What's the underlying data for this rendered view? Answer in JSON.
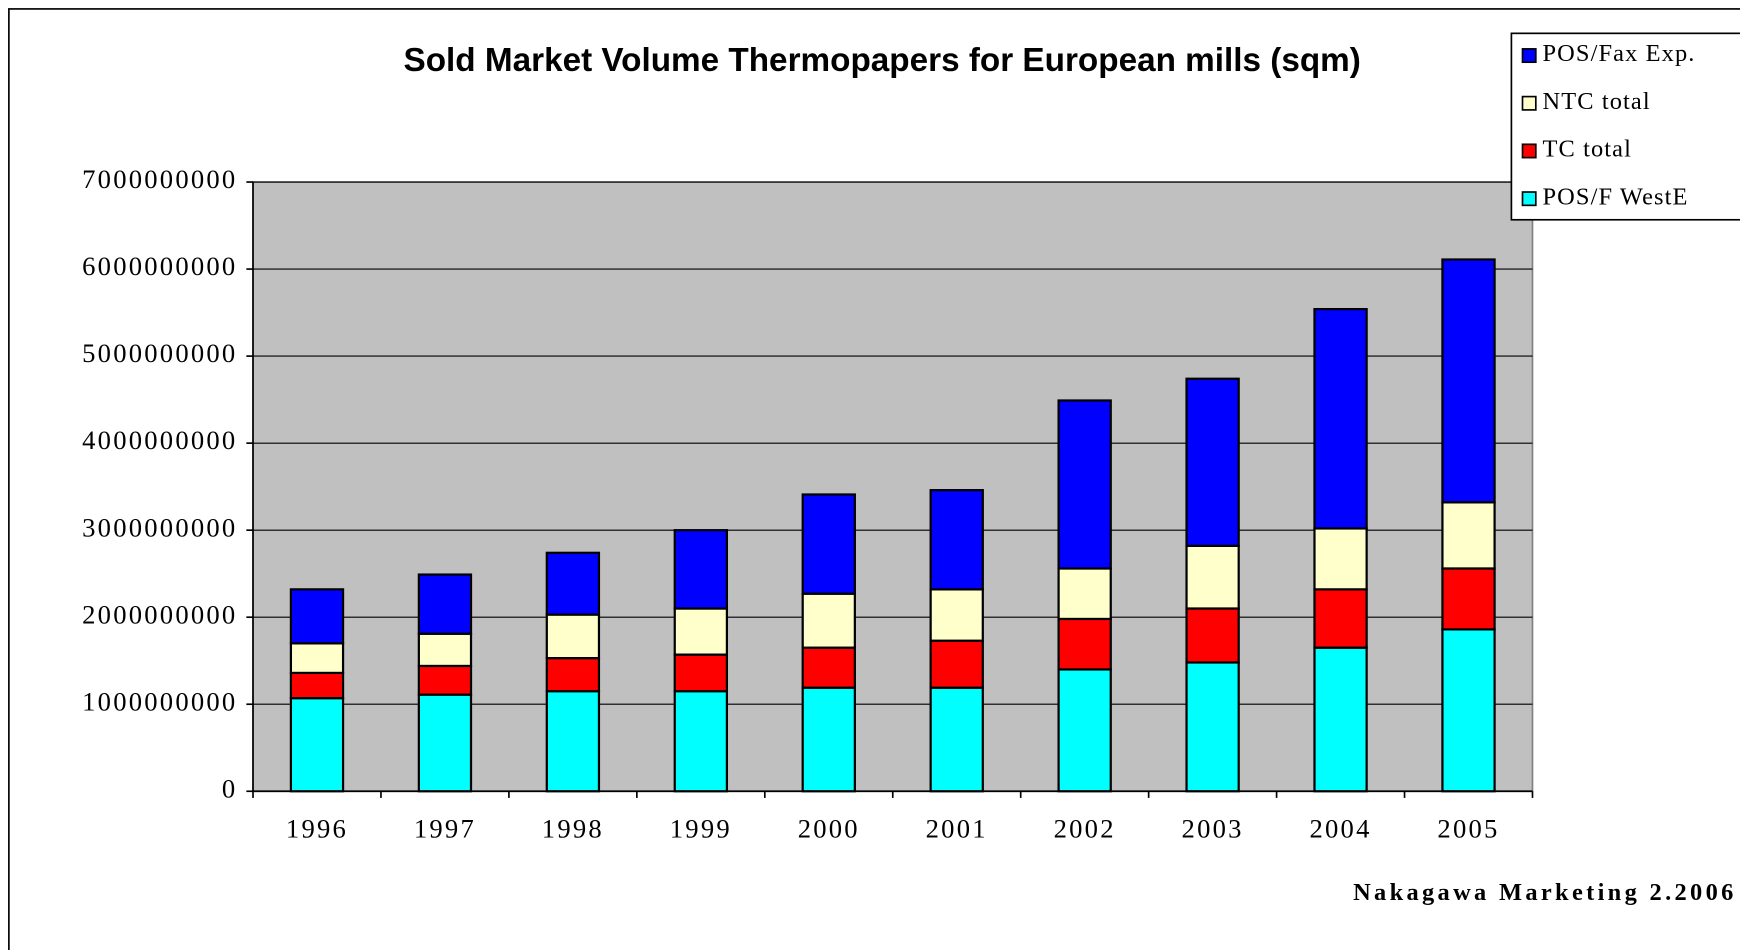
{
  "chart_data": {
    "type": "stacked_bar",
    "title": "Sold Market Volume Thermopapers for European mills (sqm)",
    "source": "Nakagawa Marketing 2.2006",
    "categories": [
      "1996",
      "1997",
      "1998",
      "1999",
      "2000",
      "2001",
      "2002",
      "2003",
      "2004",
      "2005"
    ],
    "series": [
      {
        "name": " POS/F WestE",
        "color": "#00ffff",
        "values": [
          1070000000,
          1110000000,
          1150000000,
          1150000000,
          1190000000,
          1190000000,
          1400000000,
          1480000000,
          1650000000,
          1860000000
        ]
      },
      {
        "name": "TC total",
        "color": "#ff0000",
        "values": [
          290000000,
          330000000,
          380000000,
          420000000,
          460000000,
          540000000,
          580000000,
          620000000,
          670000000,
          700000000
        ]
      },
      {
        "name": "NTC total",
        "color": "#ffffcc",
        "values": [
          340000000,
          370000000,
          500000000,
          530000000,
          620000000,
          590000000,
          580000000,
          720000000,
          700000000,
          760000000
        ]
      },
      {
        "name": "POS/Fax Exp.",
        "color": "#0000ff",
        "values": [
          620000000,
          680000000,
          710000000,
          900000000,
          1140000000,
          1140000000,
          1930000000,
          1920000000,
          2520000000,
          2790000000
        ]
      }
    ],
    "ylim": [
      0,
      7000000000
    ],
    "yticks": [
      0,
      1000000000,
      2000000000,
      3000000000,
      4000000000,
      5000000000,
      6000000000,
      7000000000
    ],
    "grid": true,
    "plot_background": "#c0c0c0",
    "legend": "top-right"
  }
}
